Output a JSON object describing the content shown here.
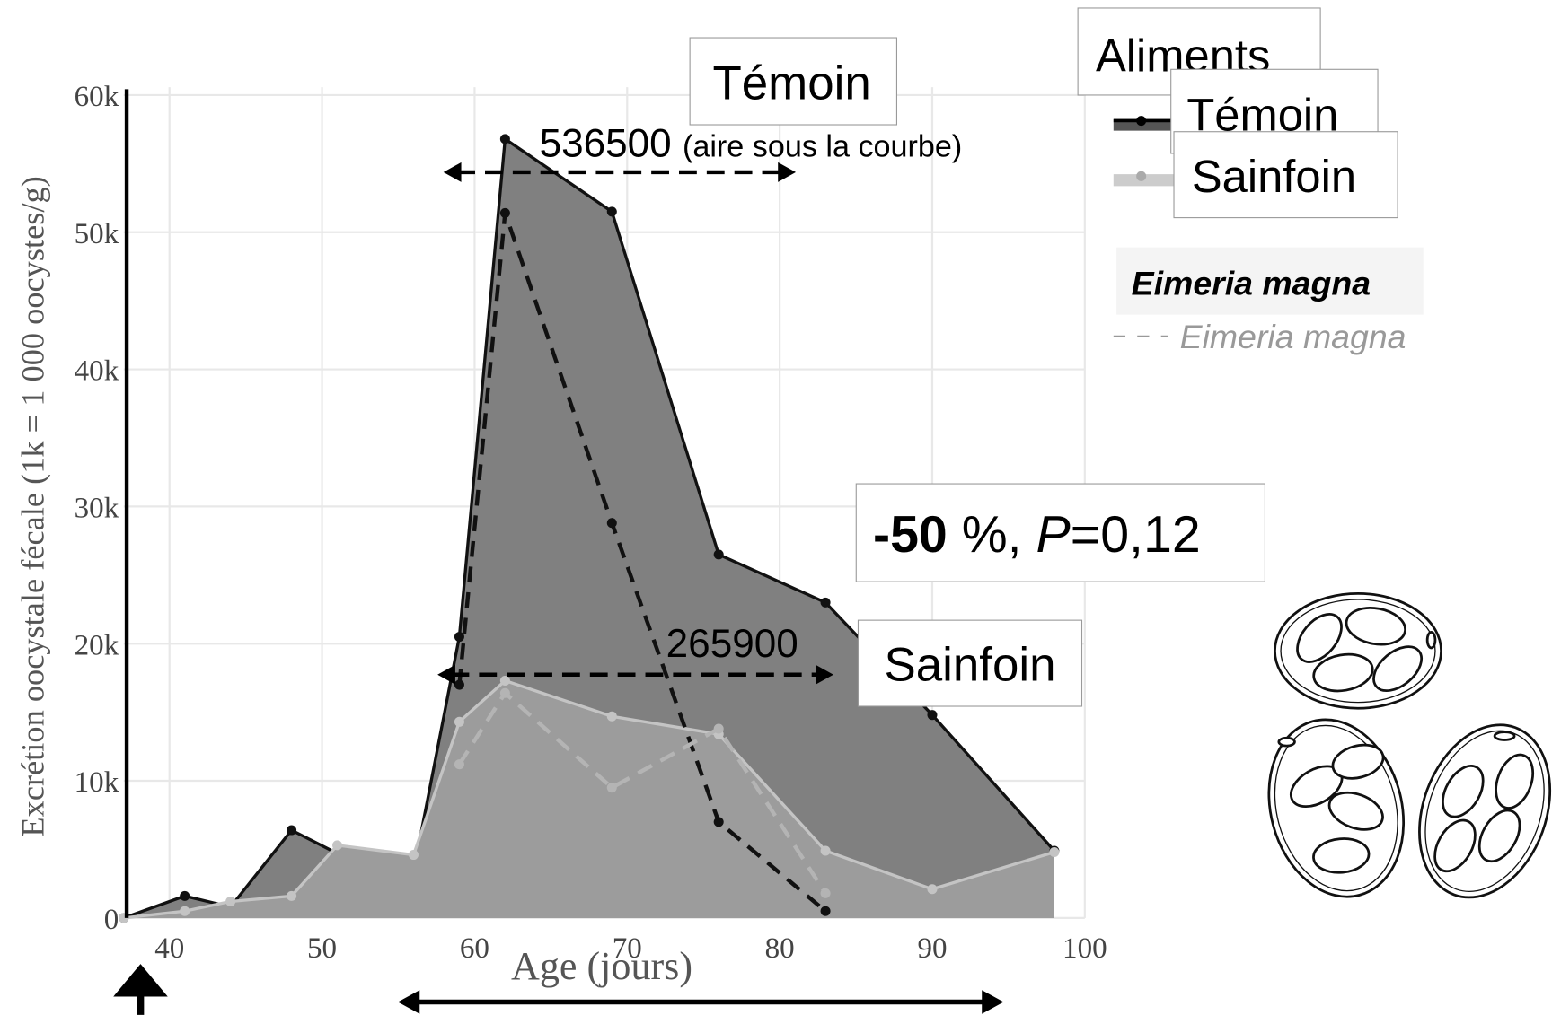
{
  "chart_data": {
    "type": "area",
    "y_label": "Excrétion oocystale fécale (1k = 1 000 oocystes/g)",
    "x_label": "Age (jours)",
    "x": [
      37,
      41,
      44,
      48,
      51,
      56,
      59,
      62,
      69,
      76,
      83,
      90,
      98
    ],
    "xlim": [
      37,
      100
    ],
    "xticks": [
      40,
      50,
      60,
      70,
      80,
      90,
      100
    ],
    "ylim": [
      0,
      60000
    ],
    "yticks": [
      0,
      {
        "value": 10000,
        "label": "10k"
      },
      {
        "value": 20000,
        "label": "20k"
      },
      {
        "value": 30000,
        "label": "30k"
      },
      {
        "value": 40000,
        "label": "40k"
      },
      {
        "value": 50000,
        "label": "50k"
      },
      {
        "value": 60000,
        "label": "60k"
      }
    ],
    "grid": true,
    "legend_title": "Aliments",
    "series": [
      {
        "name": "Témoin",
        "color": "#111111",
        "fill": "#808080",
        "style": "area",
        "values": [
          0,
          1600,
          800,
          6400,
          4700,
          3400,
          20500,
          56800,
          51500,
          26500,
          23000,
          14800,
          4900
        ]
      },
      {
        "name": "Sainfoin",
        "color": "#c4c4c4",
        "fill": "#9c9c9c",
        "style": "area",
        "values": [
          0,
          500,
          1200,
          1600,
          5300,
          4600,
          14300,
          17300,
          14700,
          13400,
          4900,
          2100,
          4800
        ]
      },
      {
        "name": "Eimeria magna",
        "color": "#111111",
        "style": "dashed",
        "values": [
          null,
          null,
          null,
          null,
          null,
          null,
          17000,
          51400,
          28800,
          7000,
          500,
          null,
          null
        ]
      },
      {
        "name": "Eimeria magna",
        "color": "#b4b4b4",
        "style": "dashed",
        "values": [
          null,
          null,
          null,
          null,
          null,
          null,
          11200,
          16400,
          9500,
          13800,
          1800,
          null,
          null
        ]
      }
    ],
    "annotations": [
      "Témoin",
      "536500",
      "(aire sous la courbe)",
      "265900",
      "Sainfoin"
    ],
    "stat": [
      "-50",
      " %, ",
      "P",
      "=0,12"
    ]
  }
}
